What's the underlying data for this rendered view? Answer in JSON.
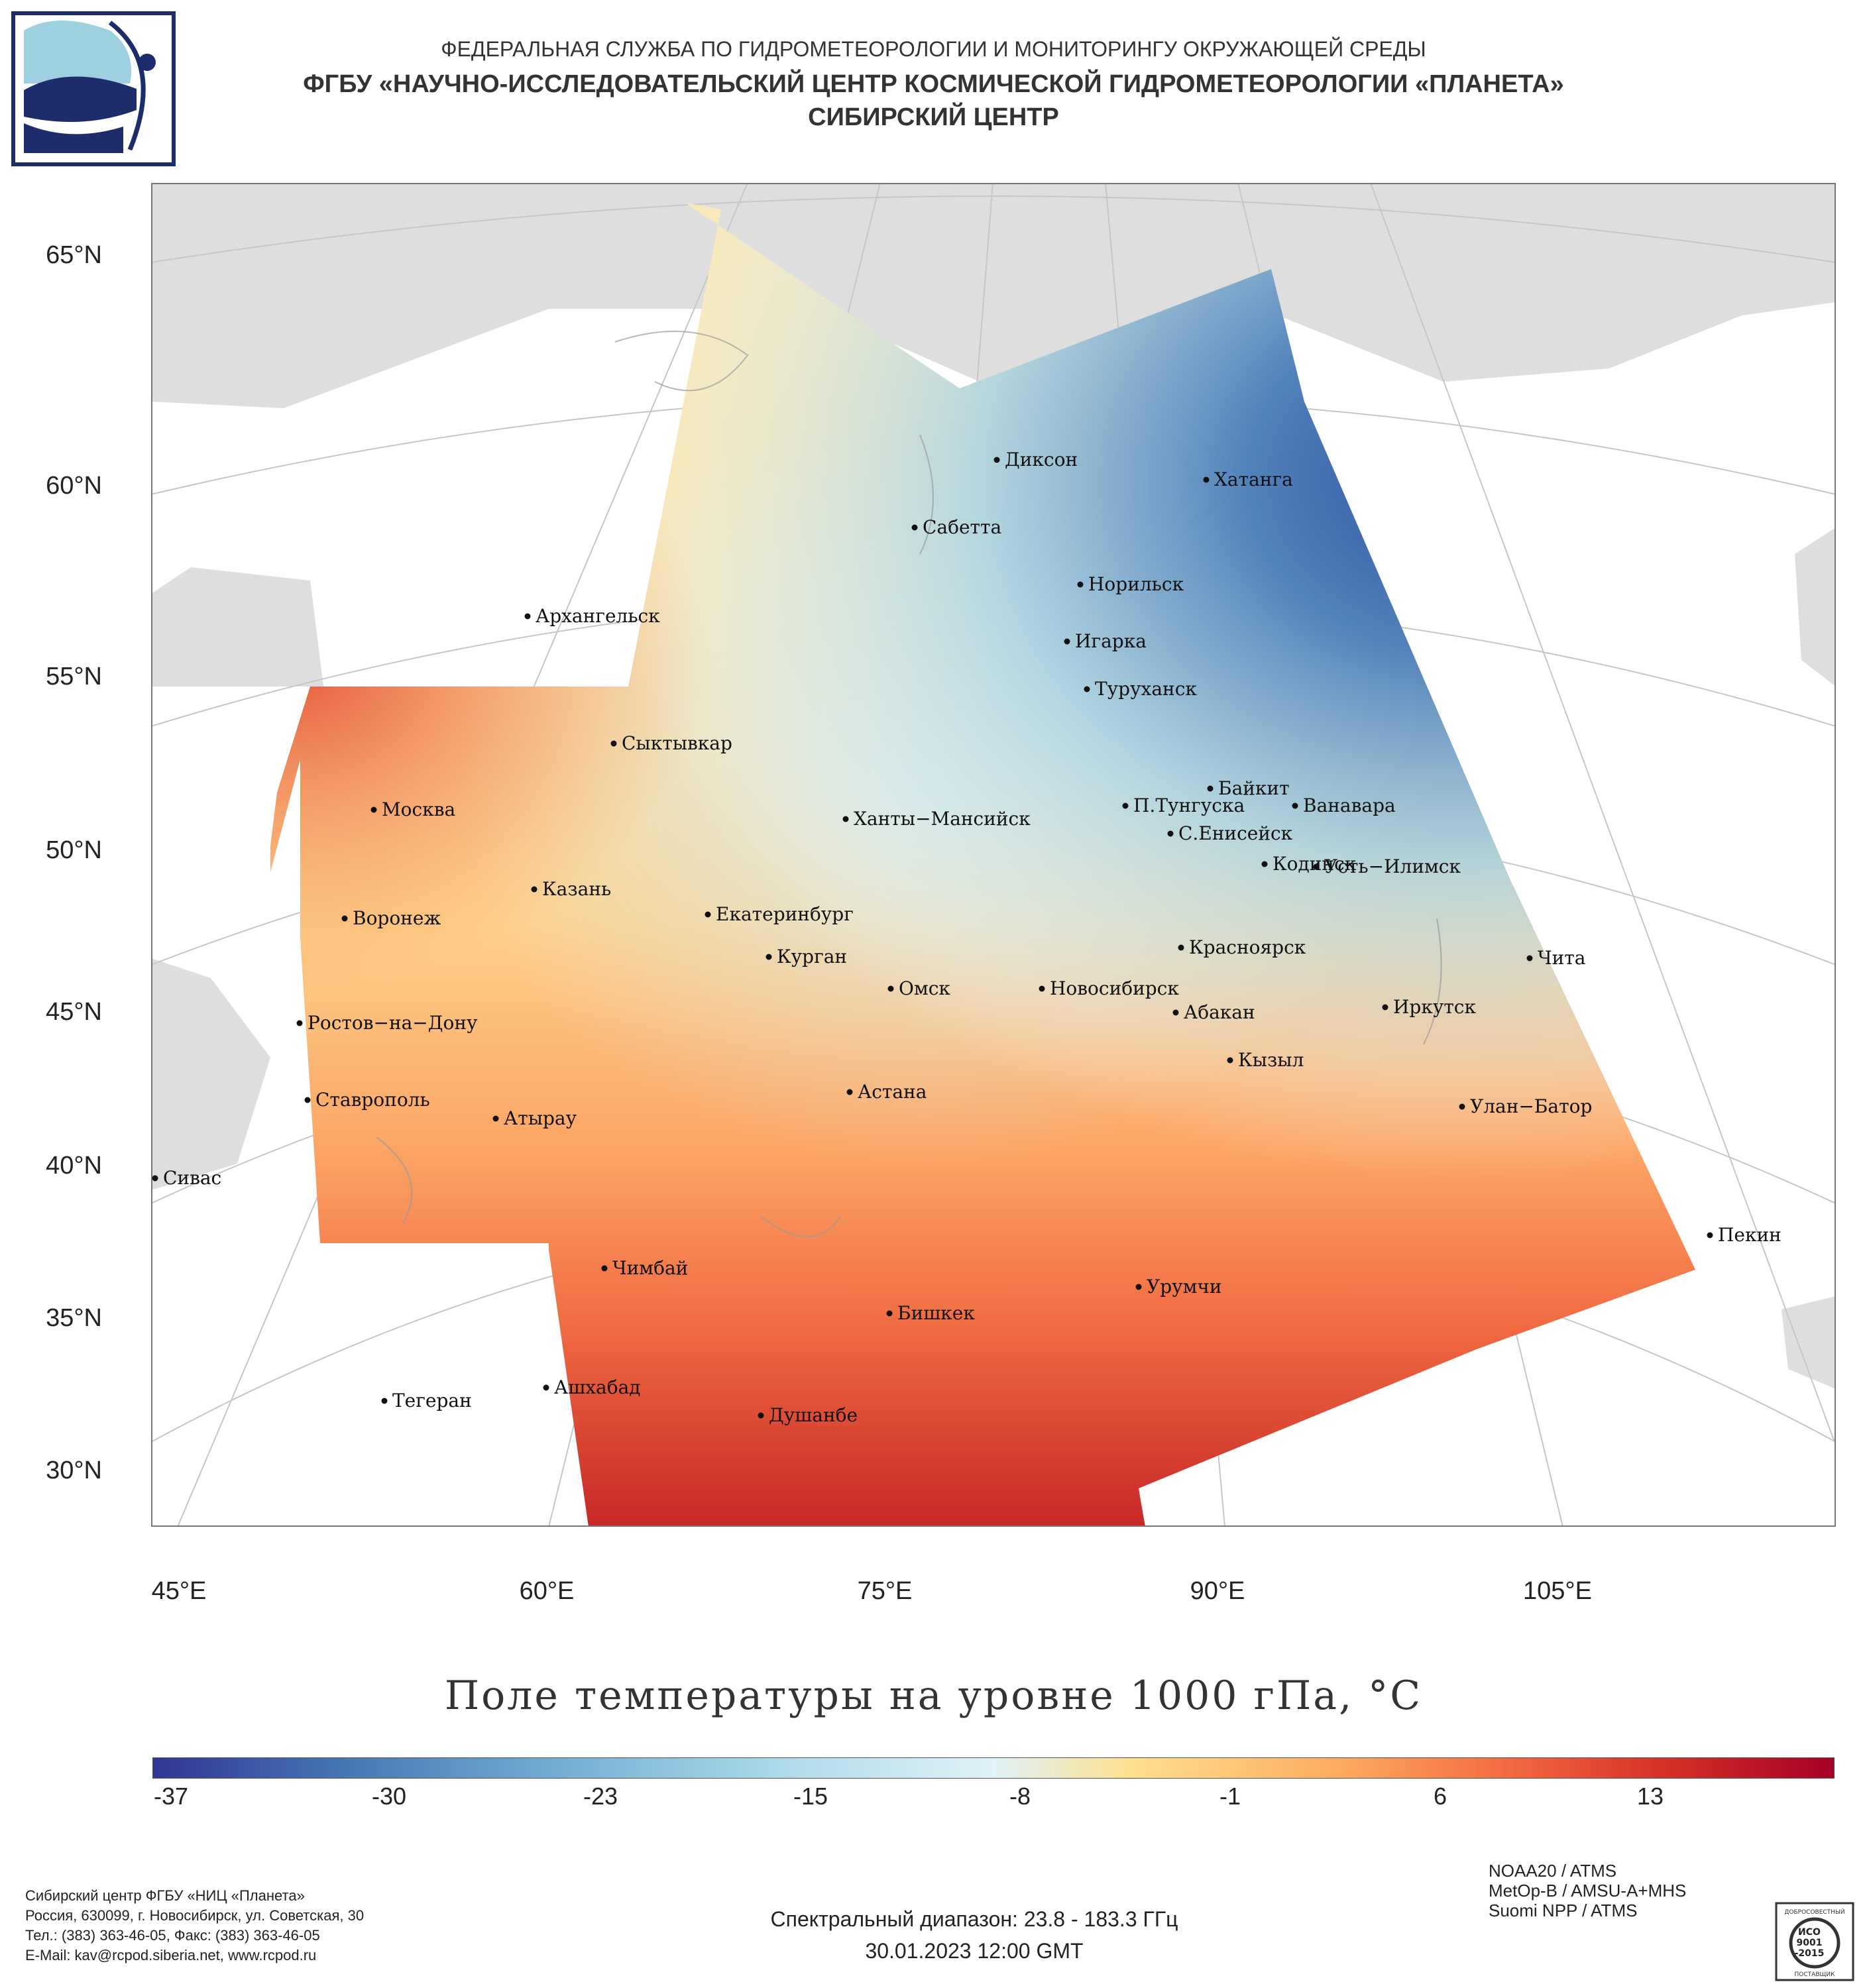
{
  "header": {
    "line1": "ФЕДЕРАЛЬНАЯ СЛУЖБА ПО ГИДРОМЕТЕОРОЛОГИИ И МОНИТОРИНГУ ОКРУЖАЮЩЕЙ СРЕДЫ",
    "line2": "ФГБУ «НАУЧНО-ИССЛЕДОВАТЕЛЬСКИЙ ЦЕНТР КОСМИЧЕСКОЙ ГИДРОМЕТЕОРОЛОГИИ «ПЛАНЕТА»",
    "line3": "СИБИРСКИЙ ЦЕНТР"
  },
  "map": {
    "lat_labels": [
      "65°N",
      "60°N",
      "55°N",
      "50°N",
      "45°N",
      "40°N",
      "35°N",
      "30°N"
    ],
    "lon_labels": [
      "45°E",
      "60°E",
      "75°E",
      "90°E",
      "105°E"
    ],
    "cities": [
      {
        "name": "Диксон"
      },
      {
        "name": "Хатанга"
      },
      {
        "name": "Сабетта"
      },
      {
        "name": "Норильск"
      },
      {
        "name": "Архангельск"
      },
      {
        "name": "Игарка"
      },
      {
        "name": "Туруханск"
      },
      {
        "name": "Сыктывкар"
      },
      {
        "name": "Байкит"
      },
      {
        "name": "Москва"
      },
      {
        "name": "Ханты−Мансийск"
      },
      {
        "name": "П.Тунгуска"
      },
      {
        "name": "Ванавара"
      },
      {
        "name": "С.Енисейск"
      },
      {
        "name": "Кодинск"
      },
      {
        "name": "Усть−Илимск"
      },
      {
        "name": "Казань"
      },
      {
        "name": "Екатеринбург"
      },
      {
        "name": "Воронеж"
      },
      {
        "name": "Красноярск"
      },
      {
        "name": "Курган"
      },
      {
        "name": "Чита"
      },
      {
        "name": "Омск"
      },
      {
        "name": "Новосибирск"
      },
      {
        "name": "Иркутск"
      },
      {
        "name": "Абакан"
      },
      {
        "name": "Ростов−на−Дону"
      },
      {
        "name": "Кызыл"
      },
      {
        "name": "Астана"
      },
      {
        "name": "Ставрополь"
      },
      {
        "name": "Улан−Батор"
      },
      {
        "name": "Атырау"
      },
      {
        "name": "Сивас"
      },
      {
        "name": "Пекин"
      },
      {
        "name": "Чимбай"
      },
      {
        "name": "Урумчи"
      },
      {
        "name": "Бишкек"
      },
      {
        "name": "Ашхабад"
      },
      {
        "name": "Тегеран"
      },
      {
        "name": "Душанбе"
      }
    ]
  },
  "title": "Поле температуры на уровне 1000 гПа, °C",
  "colorbar": {
    "ticks": [
      "-37",
      "-30",
      "-23",
      "-15",
      "-8",
      "-1",
      "6",
      "13"
    ],
    "range": [
      -40,
      17
    ],
    "colors": [
      "#313695",
      "#4575b4",
      "#74add1",
      "#abd9e9",
      "#e0f3f8",
      "#fee090",
      "#fdae61",
      "#f46d43",
      "#d73027",
      "#a50026"
    ]
  },
  "satellites": [
    "NOAA20 / ATMS",
    "MetOp-B / AMSU-A+MHS",
    "Suomi NPP / ATMS"
  ],
  "spectral": "Спектральный диапазон: 23.8 - 183.3 ГГц",
  "datetime": "30.01.2023 12:00 GMT",
  "footer": {
    "line1": "Сибирский центр ФГБУ «НИЦ «Планета»",
    "line2": "Россия, 630099, г. Новосибирск, ул. Советская, 30",
    "line3": "Тел.: (383) 363-46-05, Факс: (383) 363-46-05",
    "line4": "E-Mail: kav@rcpod.siberia.net, www.rcpod.ru"
  },
  "certificate": {
    "top": "ДОБРОСОВЕСТНЫЙ",
    "mid1": "ИСО",
    "mid2": "9001",
    "mid3": "-2015",
    "bottom": "ПОСТАВЩИК"
  }
}
